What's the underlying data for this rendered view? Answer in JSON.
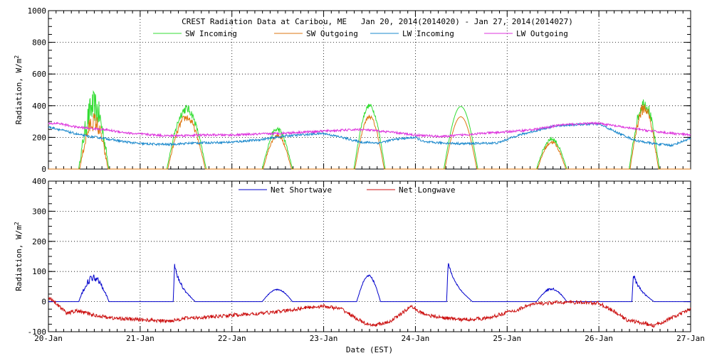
{
  "chart_data": [
    {
      "type": "line",
      "title": "CREST Radiation Data at Caribou, ME   Jan 20, 2014(2014020) - Jan 27, 2014(2014027)",
      "xlabel": "",
      "ylabel": "Radiation, W/m^2",
      "xlim": [
        "2014-01-20",
        "2014-01-27"
      ],
      "ylim": [
        0,
        1000
      ],
      "yticks": [
        0,
        200,
        400,
        600,
        800,
        1000
      ],
      "grid": true,
      "legend": "top, horizontal",
      "series": [
        {
          "name": "SW Incoming",
          "color": "#33dd33",
          "days": [
            {
              "start": 0.33,
              "end": 0.66,
              "peak": 395,
              "jitter": 1
            },
            {
              "start": 1.29,
              "end": 1.72,
              "peak": 380,
              "jitter": 0.3
            },
            {
              "start": 2.33,
              "end": 2.66,
              "peak": 250,
              "jitter": 0.3
            },
            {
              "start": 3.33,
              "end": 3.67,
              "peak": 400,
              "jitter": 0.15
            },
            {
              "start": 4.31,
              "end": 4.68,
              "peak": 395,
              "jitter": 0
            },
            {
              "start": 5.32,
              "end": 5.65,
              "peak": 190,
              "jitter": 0.3
            },
            {
              "start": 6.33,
              "end": 6.66,
              "peak": 415,
              "jitter": 0.4
            }
          ]
        },
        {
          "name": "SW Outgoing",
          "color": "#dd7711",
          "days": [
            {
              "start": 0.34,
              "end": 0.65,
              "peak": 300,
              "jitter": 0.8
            },
            {
              "start": 1.3,
              "end": 1.71,
              "peak": 325,
              "jitter": 0.3
            },
            {
              "start": 2.34,
              "end": 2.65,
              "peak": 215,
              "jitter": 0.3
            },
            {
              "start": 3.34,
              "end": 3.66,
              "peak": 330,
              "jitter": 0.15
            },
            {
              "start": 4.32,
              "end": 4.67,
              "peak": 330,
              "jitter": 0
            },
            {
              "start": 5.33,
              "end": 5.64,
              "peak": 170,
              "jitter": 0.3
            },
            {
              "start": 6.34,
              "end": 6.65,
              "peak": 385,
              "jitter": 0.4
            }
          ]
        },
        {
          "name": "LW Incoming",
          "color": "#1a88cc",
          "x": [
            0,
            0.05,
            0.15,
            0.25,
            0.35,
            0.45,
            0.6,
            0.8,
            1.0,
            1.3,
            1.6,
            2.0,
            2.3,
            2.6,
            3.0,
            3.2,
            3.4,
            3.6,
            3.8,
            4.0,
            4.1,
            4.5,
            4.9,
            5.1,
            5.3,
            5.5,
            5.7,
            6.0,
            6.2,
            6.4,
            6.6,
            6.8,
            7.0
          ],
          "y": [
            265,
            260,
            245,
            230,
            215,
            205,
            195,
            175,
            160,
            155,
            165,
            170,
            185,
            210,
            225,
            200,
            170,
            165,
            190,
            200,
            170,
            160,
            165,
            210,
            240,
            270,
            280,
            285,
            230,
            180,
            160,
            150,
            195
          ]
        },
        {
          "name": "LW Outgoing",
          "color": "#dd33dd",
          "x": [
            0,
            0.1,
            0.3,
            0.6,
            0.9,
            1.3,
            1.7,
            2.0,
            2.5,
            3.0,
            3.4,
            3.7,
            4.0,
            4.3,
            4.6,
            5.0,
            5.3,
            5.6,
            6.0,
            6.2,
            6.5,
            6.8,
            7.0
          ],
          "y": [
            285,
            290,
            265,
            250,
            225,
            210,
            215,
            215,
            225,
            240,
            250,
            235,
            215,
            205,
            220,
            235,
            250,
            280,
            290,
            270,
            245,
            225,
            215
          ]
        }
      ]
    },
    {
      "type": "line",
      "title": "",
      "xlabel": "Date (EST)",
      "ylabel": "Radiation, W/m^2",
      "x_ticklabels": [
        "20-Jan",
        "21-Jan",
        "22-Jan",
        "23-Jan",
        "24-Jan",
        "25-Jan",
        "26-Jan",
        "27-Jan"
      ],
      "xlim": [
        "2014-01-20",
        "2014-01-27"
      ],
      "ylim": [
        -100,
        400
      ],
      "yticks": [
        -100,
        0,
        100,
        200,
        300,
        400
      ],
      "grid": true,
      "legend": "top, horizontal",
      "series": [
        {
          "name": "Net Shortwave",
          "color": "#0000cc",
          "days": [
            {
              "start": 0.33,
              "end": 0.66,
              "peak": 80,
              "jitter": 0.6
            },
            {
              "start": 1.36,
              "end": 1.6,
              "peak": 118,
              "jitter": 0.4,
              "shape": "decay"
            },
            {
              "start": 2.33,
              "end": 2.66,
              "peak": 40,
              "jitter": 0.2
            },
            {
              "start": 3.36,
              "end": 3.62,
              "peak": 85,
              "jitter": 0.2
            },
            {
              "start": 4.34,
              "end": 4.62,
              "peak": 128,
              "jitter": 0.15,
              "shape": "decay"
            },
            {
              "start": 5.32,
              "end": 5.65,
              "peak": 42,
              "jitter": 0.3
            },
            {
              "start": 6.36,
              "end": 6.6,
              "peak": 90,
              "jitter": 0.4,
              "shape": "decay"
            }
          ]
        },
        {
          "name": "Net Longwave",
          "color": "#cc1111",
          "x": [
            0,
            0.05,
            0.1,
            0.2,
            0.3,
            0.5,
            0.7,
            1.0,
            1.3,
            1.5,
            1.8,
            2.0,
            2.3,
            2.6,
            2.8,
            3.0,
            3.2,
            3.35,
            3.5,
            3.7,
            3.85,
            3.95,
            4.05,
            4.2,
            4.5,
            4.8,
            5.0,
            5.1,
            5.2,
            5.3,
            5.45,
            5.6,
            5.8,
            6.0,
            6.15,
            6.3,
            6.45,
            6.6,
            6.75,
            6.9,
            7.0
          ],
          "y": [
            15,
            5,
            -10,
            -40,
            -30,
            -45,
            -55,
            -60,
            -65,
            -55,
            -50,
            -45,
            -40,
            -30,
            -20,
            -15,
            -25,
            -55,
            -80,
            -70,
            -40,
            -15,
            -35,
            -50,
            -60,
            -55,
            -35,
            -30,
            -15,
            -8,
            -5,
            -2,
            -3,
            -5,
            -30,
            -60,
            -70,
            -80,
            -60,
            -40,
            -25
          ]
        }
      ]
    }
  ]
}
